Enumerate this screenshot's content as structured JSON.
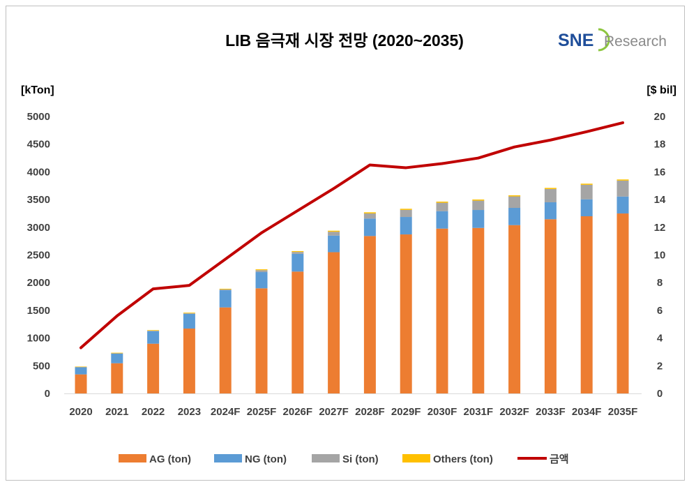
{
  "chart_data": {
    "type": "bar",
    "subtype": "stacked bar with line on secondary axis",
    "title": "LIB 음극재 시장 전망 (2020~2035)",
    "logo": {
      "text_main": "SNE",
      "text_secondary": "Research"
    },
    "ylabel": "[kTon]",
    "y2label": "[$ bil]",
    "ylim": [
      0,
      5000
    ],
    "y2lim": [
      0,
      20
    ],
    "yticks": [
      0,
      500,
      1000,
      1500,
      2000,
      2500,
      3000,
      3500,
      4000,
      4500,
      5000
    ],
    "y2ticks": [
      0,
      2,
      4,
      6,
      8,
      10,
      12,
      14,
      16,
      18,
      20
    ],
    "grid": false,
    "legend_position": "bottom",
    "categories": [
      "2020",
      "2021",
      "2022",
      "2023",
      "2024F",
      "2025F",
      "2026F",
      "2027F",
      "2028F",
      "2029F",
      "2030F",
      "2031F",
      "2032F",
      "2033F",
      "2034F",
      "2035F"
    ],
    "series": [
      {
        "name": "AG (ton)",
        "type": "bar",
        "color": "#ED7D31",
        "values": [
          344,
          545,
          898,
          1171,
          1553,
          1898,
          2200,
          2550,
          2842,
          2871,
          2976,
          2988,
          3039,
          3145,
          3199,
          3249
        ]
      },
      {
        "name": "NG (ton)",
        "type": "bar",
        "color": "#5B9BD5",
        "values": [
          130,
          175,
          225,
          265,
          310,
          293,
          320,
          300,
          315,
          315,
          315,
          324,
          311,
          306,
          306,
          306
        ]
      },
      {
        "name": "Si (ton)",
        "type": "bar",
        "color": "#A5A5A5",
        "values": [
          3,
          5,
          10,
          10,
          15,
          35,
          35,
          70,
          93,
          128,
          152,
          169,
          207,
          240,
          262,
          288
        ]
      },
      {
        "name": "Others (ton)",
        "type": "bar",
        "color": "#FFC000",
        "values": [
          8,
          10,
          10,
          12,
          12,
          15,
          15,
          18,
          20,
          20,
          20,
          20,
          20,
          20,
          20,
          20
        ]
      },
      {
        "name": "금액",
        "type": "line",
        "axis": "right",
        "color": "#C00000",
        "values": [
          3.3,
          5.6,
          7.55,
          7.8,
          9.7,
          11.6,
          13.2,
          14.8,
          16.5,
          16.3,
          16.6,
          17.0,
          17.8,
          18.3,
          18.9,
          19.55
        ]
      }
    ]
  }
}
